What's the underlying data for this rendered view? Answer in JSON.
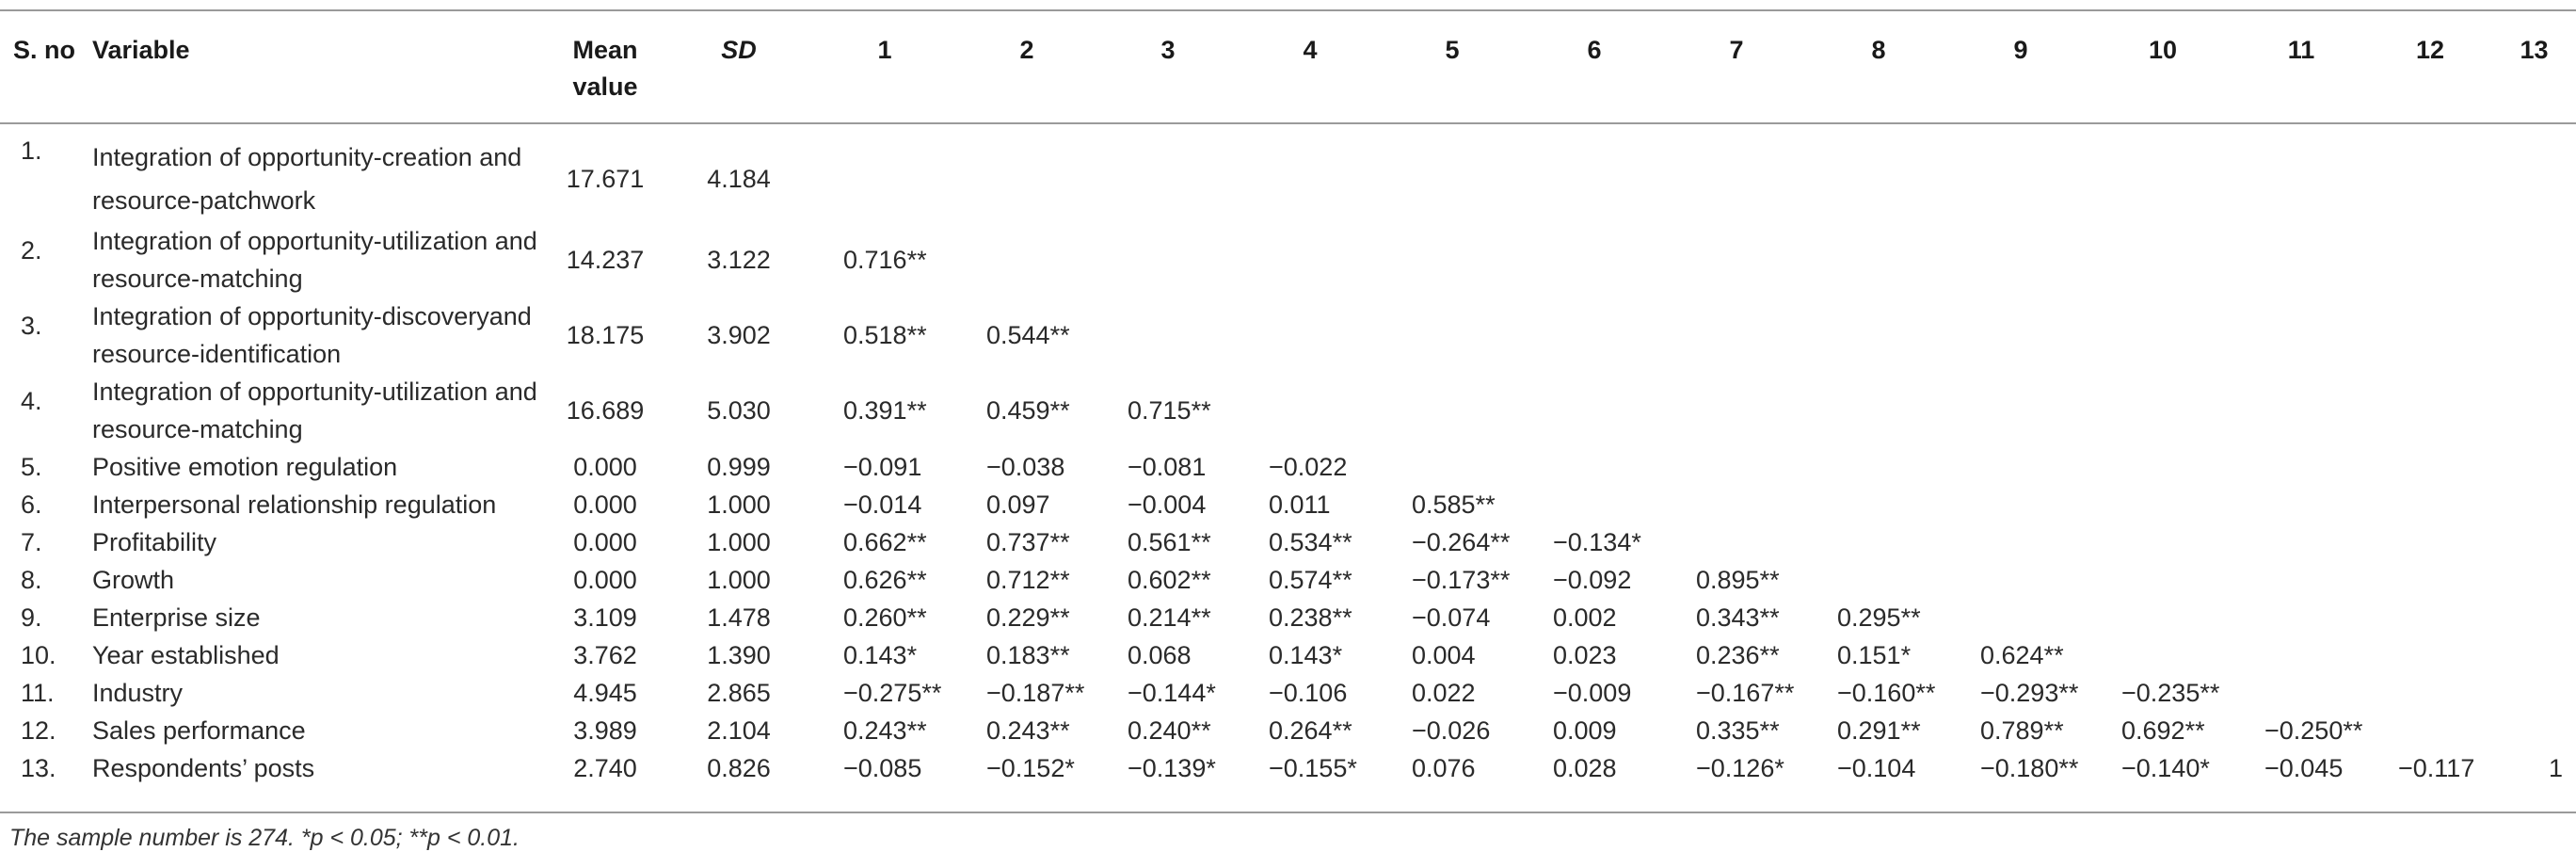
{
  "table": {
    "headers": [
      "S. no",
      "Variable",
      "Mean\nvalue",
      "SD",
      "1",
      "2",
      "3",
      "4",
      "5",
      "6",
      "7",
      "8",
      "9",
      "10",
      "11",
      "12",
      "13"
    ],
    "rows": [
      {
        "sno": "1.",
        "variable": "Integration of opportunity-creation and resource-patchwork",
        "mean": "17.671",
        "sd": "4.184",
        "corr": [
          "",
          "",
          "",
          "",
          "",
          "",
          "",
          "",
          "",
          "",
          "",
          "",
          ""
        ]
      },
      {
        "sno": "2.",
        "variable": "Integration of opportunity-utilization and resource-matching",
        "mean": "14.237",
        "sd": "3.122",
        "corr": [
          "0.716**",
          "",
          "",
          "",
          "",
          "",
          "",
          "",
          "",
          "",
          "",
          "",
          ""
        ]
      },
      {
        "sno": "3.",
        "variable": "Integration of opportunity-discoveryand resource-identification",
        "mean": "18.175",
        "sd": "3.902",
        "corr": [
          "0.518**",
          "0.544**",
          "",
          "",
          "",
          "",
          "",
          "",
          "",
          "",
          "",
          "",
          ""
        ]
      },
      {
        "sno": "4.",
        "variable": "Integration of opportunity-utilization and resource-matching",
        "mean": "16.689",
        "sd": "5.030",
        "corr": [
          "0.391**",
          "0.459**",
          "0.715**",
          "",
          "",
          "",
          "",
          "",
          "",
          "",
          "",
          "",
          ""
        ]
      },
      {
        "sno": "5.",
        "variable": "Positive emotion regulation",
        "mean": "0.000",
        "sd": "0.999",
        "corr": [
          "−0.091",
          "−0.038",
          "−0.081",
          "−0.022",
          "",
          "",
          "",
          "",
          "",
          "",
          "",
          "",
          ""
        ]
      },
      {
        "sno": "6.",
        "variable": "Interpersonal relationship regulation",
        "mean": "0.000",
        "sd": "1.000",
        "corr": [
          "−0.014",
          "0.097",
          "−0.004",
          "0.011",
          "0.585**",
          "",
          "",
          "",
          "",
          "",
          "",
          "",
          ""
        ]
      },
      {
        "sno": "7.",
        "variable": "Profitability",
        "mean": "0.000",
        "sd": "1.000",
        "corr": [
          "0.662**",
          "0.737**",
          "0.561**",
          "0.534**",
          "−0.264**",
          "−0.134*",
          "",
          "",
          "",
          "",
          "",
          "",
          ""
        ]
      },
      {
        "sno": "8.",
        "variable": "Growth",
        "mean": "0.000",
        "sd": "1.000",
        "corr": [
          "0.626**",
          "0.712**",
          "0.602**",
          "0.574**",
          "−0.173**",
          "−0.092",
          "0.895**",
          "",
          "",
          "",
          "",
          "",
          ""
        ]
      },
      {
        "sno": "9.",
        "variable": "Enterprise size",
        "mean": "3.109",
        "sd": "1.478",
        "corr": [
          "0.260**",
          "0.229**",
          "0.214**",
          "0.238**",
          "−0.074",
          "0.002",
          "0.343**",
          "0.295**",
          "",
          "",
          "",
          "",
          ""
        ]
      },
      {
        "sno": "10.",
        "variable": "Year established",
        "mean": "3.762",
        "sd": "1.390",
        "corr": [
          "0.143*",
          "0.183**",
          "0.068",
          "0.143*",
          "0.004",
          "0.023",
          "0.236**",
          "0.151*",
          "0.624**",
          "",
          "",
          "",
          ""
        ]
      },
      {
        "sno": "11.",
        "variable": "Industry",
        "mean": "4.945",
        "sd": "2.865",
        "corr": [
          "−0.275**",
          "−0.187**",
          "−0.144*",
          "−0.106",
          "0.022",
          "−0.009",
          "−0.167**",
          "−0.160**",
          "−0.293**",
          "−0.235**",
          "",
          "",
          ""
        ]
      },
      {
        "sno": "12.",
        "variable": "Sales performance",
        "mean": "3.989",
        "sd": "2.104",
        "corr": [
          "0.243**",
          "0.243**",
          "0.240**",
          "0.264**",
          "−0.026",
          "0.009",
          "0.335**",
          "0.291**",
          "0.789**",
          "0.692**",
          "−0.250**",
          "",
          ""
        ]
      },
      {
        "sno": "13.",
        "variable": "Respondents’ posts",
        "mean": "2.740",
        "sd": "0.826",
        "corr": [
          "−0.085",
          "−0.152*",
          "−0.139*",
          "−0.155*",
          "0.076",
          "0.028",
          "−0.126*",
          "−0.104",
          "−0.180**",
          "−0.140*",
          "−0.045",
          "−0.117",
          "1"
        ]
      }
    ]
  },
  "footnote": "The sample number is 274. *p < 0.05; **p < 0.01."
}
